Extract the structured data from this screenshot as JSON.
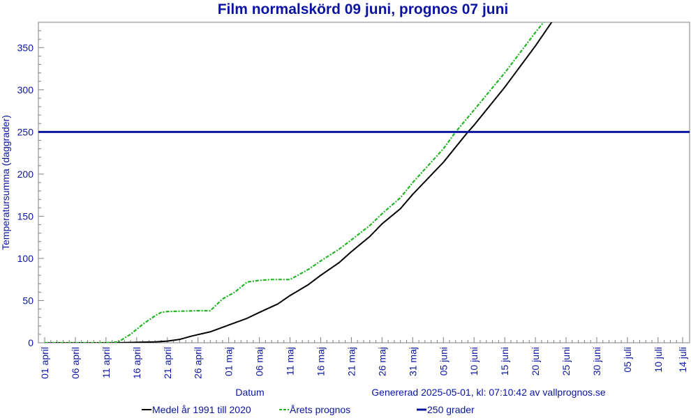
{
  "chart_data": {
    "type": "line",
    "title": "Film normalskörd 09 juni, prognos 07 juni",
    "xlabel": "Datum",
    "ylabel": "Temperatursumma (daggrader)",
    "footer": "Genererad 2025-05-01, kl: 07:10:42 av vallprognos.se",
    "x_start_date": "2025-04-01",
    "x_ticks": [
      "01 april",
      "06 april",
      "11 april",
      "16 april",
      "21 april",
      "26 april",
      "01 maj",
      "06 maj",
      "11 maj",
      "16 maj",
      "21 maj",
      "26 maj",
      "31 maj",
      "05 juni",
      "10 juni",
      "15 juni",
      "20 juni",
      "25 juni",
      "30 juni",
      "05 juli",
      "10 juli",
      "14 juli"
    ],
    "ylim": [
      0,
      380
    ],
    "y_ticks": [
      0,
      50,
      100,
      150,
      200,
      250,
      300,
      350
    ],
    "series": [
      {
        "name": "Medel år 1991 till 2020",
        "color": "#000000",
        "style": "solid",
        "points": [
          [
            "2025-04-01",
            0
          ],
          [
            "2025-04-11",
            0
          ],
          [
            "2025-04-13",
            0
          ],
          [
            "2025-04-16",
            0.5
          ],
          [
            "2025-04-19",
            1
          ],
          [
            "2025-04-21",
            2
          ],
          [
            "2025-04-23",
            4
          ],
          [
            "2025-04-25",
            8
          ],
          [
            "2025-04-28",
            13
          ],
          [
            "2025-05-01",
            21
          ],
          [
            "2025-05-04",
            29
          ],
          [
            "2025-05-06",
            36
          ],
          [
            "2025-05-09",
            46
          ],
          [
            "2025-05-11",
            56
          ],
          [
            "2025-05-14",
            69
          ],
          [
            "2025-05-16",
            80
          ],
          [
            "2025-05-19",
            95
          ],
          [
            "2025-05-21",
            108
          ],
          [
            "2025-05-24",
            126
          ],
          [
            "2025-05-26",
            141
          ],
          [
            "2025-05-29",
            159
          ],
          [
            "2025-05-31",
            176
          ],
          [
            "2025-06-05",
            214
          ],
          [
            "2025-06-09",
            250
          ],
          [
            "2025-06-10",
            258
          ],
          [
            "2025-06-15",
            303
          ],
          [
            "2025-06-20",
            352
          ],
          [
            "2025-06-25",
            405
          ]
        ]
      },
      {
        "name": "Årets prognos",
        "color": "#22b422",
        "style": "dashdot",
        "points": [
          [
            "2025-04-01",
            0
          ],
          [
            "2025-04-11",
            0
          ],
          [
            "2025-04-13",
            1
          ],
          [
            "2025-04-15",
            10
          ],
          [
            "2025-04-17",
            22
          ],
          [
            "2025-04-19",
            32
          ],
          [
            "2025-04-20",
            36
          ],
          [
            "2025-04-21",
            37
          ],
          [
            "2025-04-26",
            38
          ],
          [
            "2025-04-28",
            38
          ],
          [
            "2025-04-30",
            52
          ],
          [
            "2025-05-02",
            60
          ],
          [
            "2025-05-04",
            72
          ],
          [
            "2025-05-06",
            74
          ],
          [
            "2025-05-08",
            75
          ],
          [
            "2025-05-11",
            75
          ],
          [
            "2025-05-14",
            87
          ],
          [
            "2025-05-16",
            97
          ],
          [
            "2025-05-19",
            111
          ],
          [
            "2025-05-21",
            122
          ],
          [
            "2025-05-24",
            139
          ],
          [
            "2025-05-26",
            153
          ],
          [
            "2025-05-29",
            172
          ],
          [
            "2025-05-31",
            190
          ],
          [
            "2025-06-05",
            230
          ],
          [
            "2025-06-07",
            250
          ],
          [
            "2025-06-10",
            276
          ],
          [
            "2025-06-15",
            320
          ],
          [
            "2025-06-20",
            368
          ],
          [
            "2025-06-23",
            395
          ]
        ]
      },
      {
        "name": "250 grader",
        "color": "#0a14a0",
        "style": "hline",
        "value": 250
      }
    ],
    "grid": false,
    "legend_position": "bottom"
  }
}
